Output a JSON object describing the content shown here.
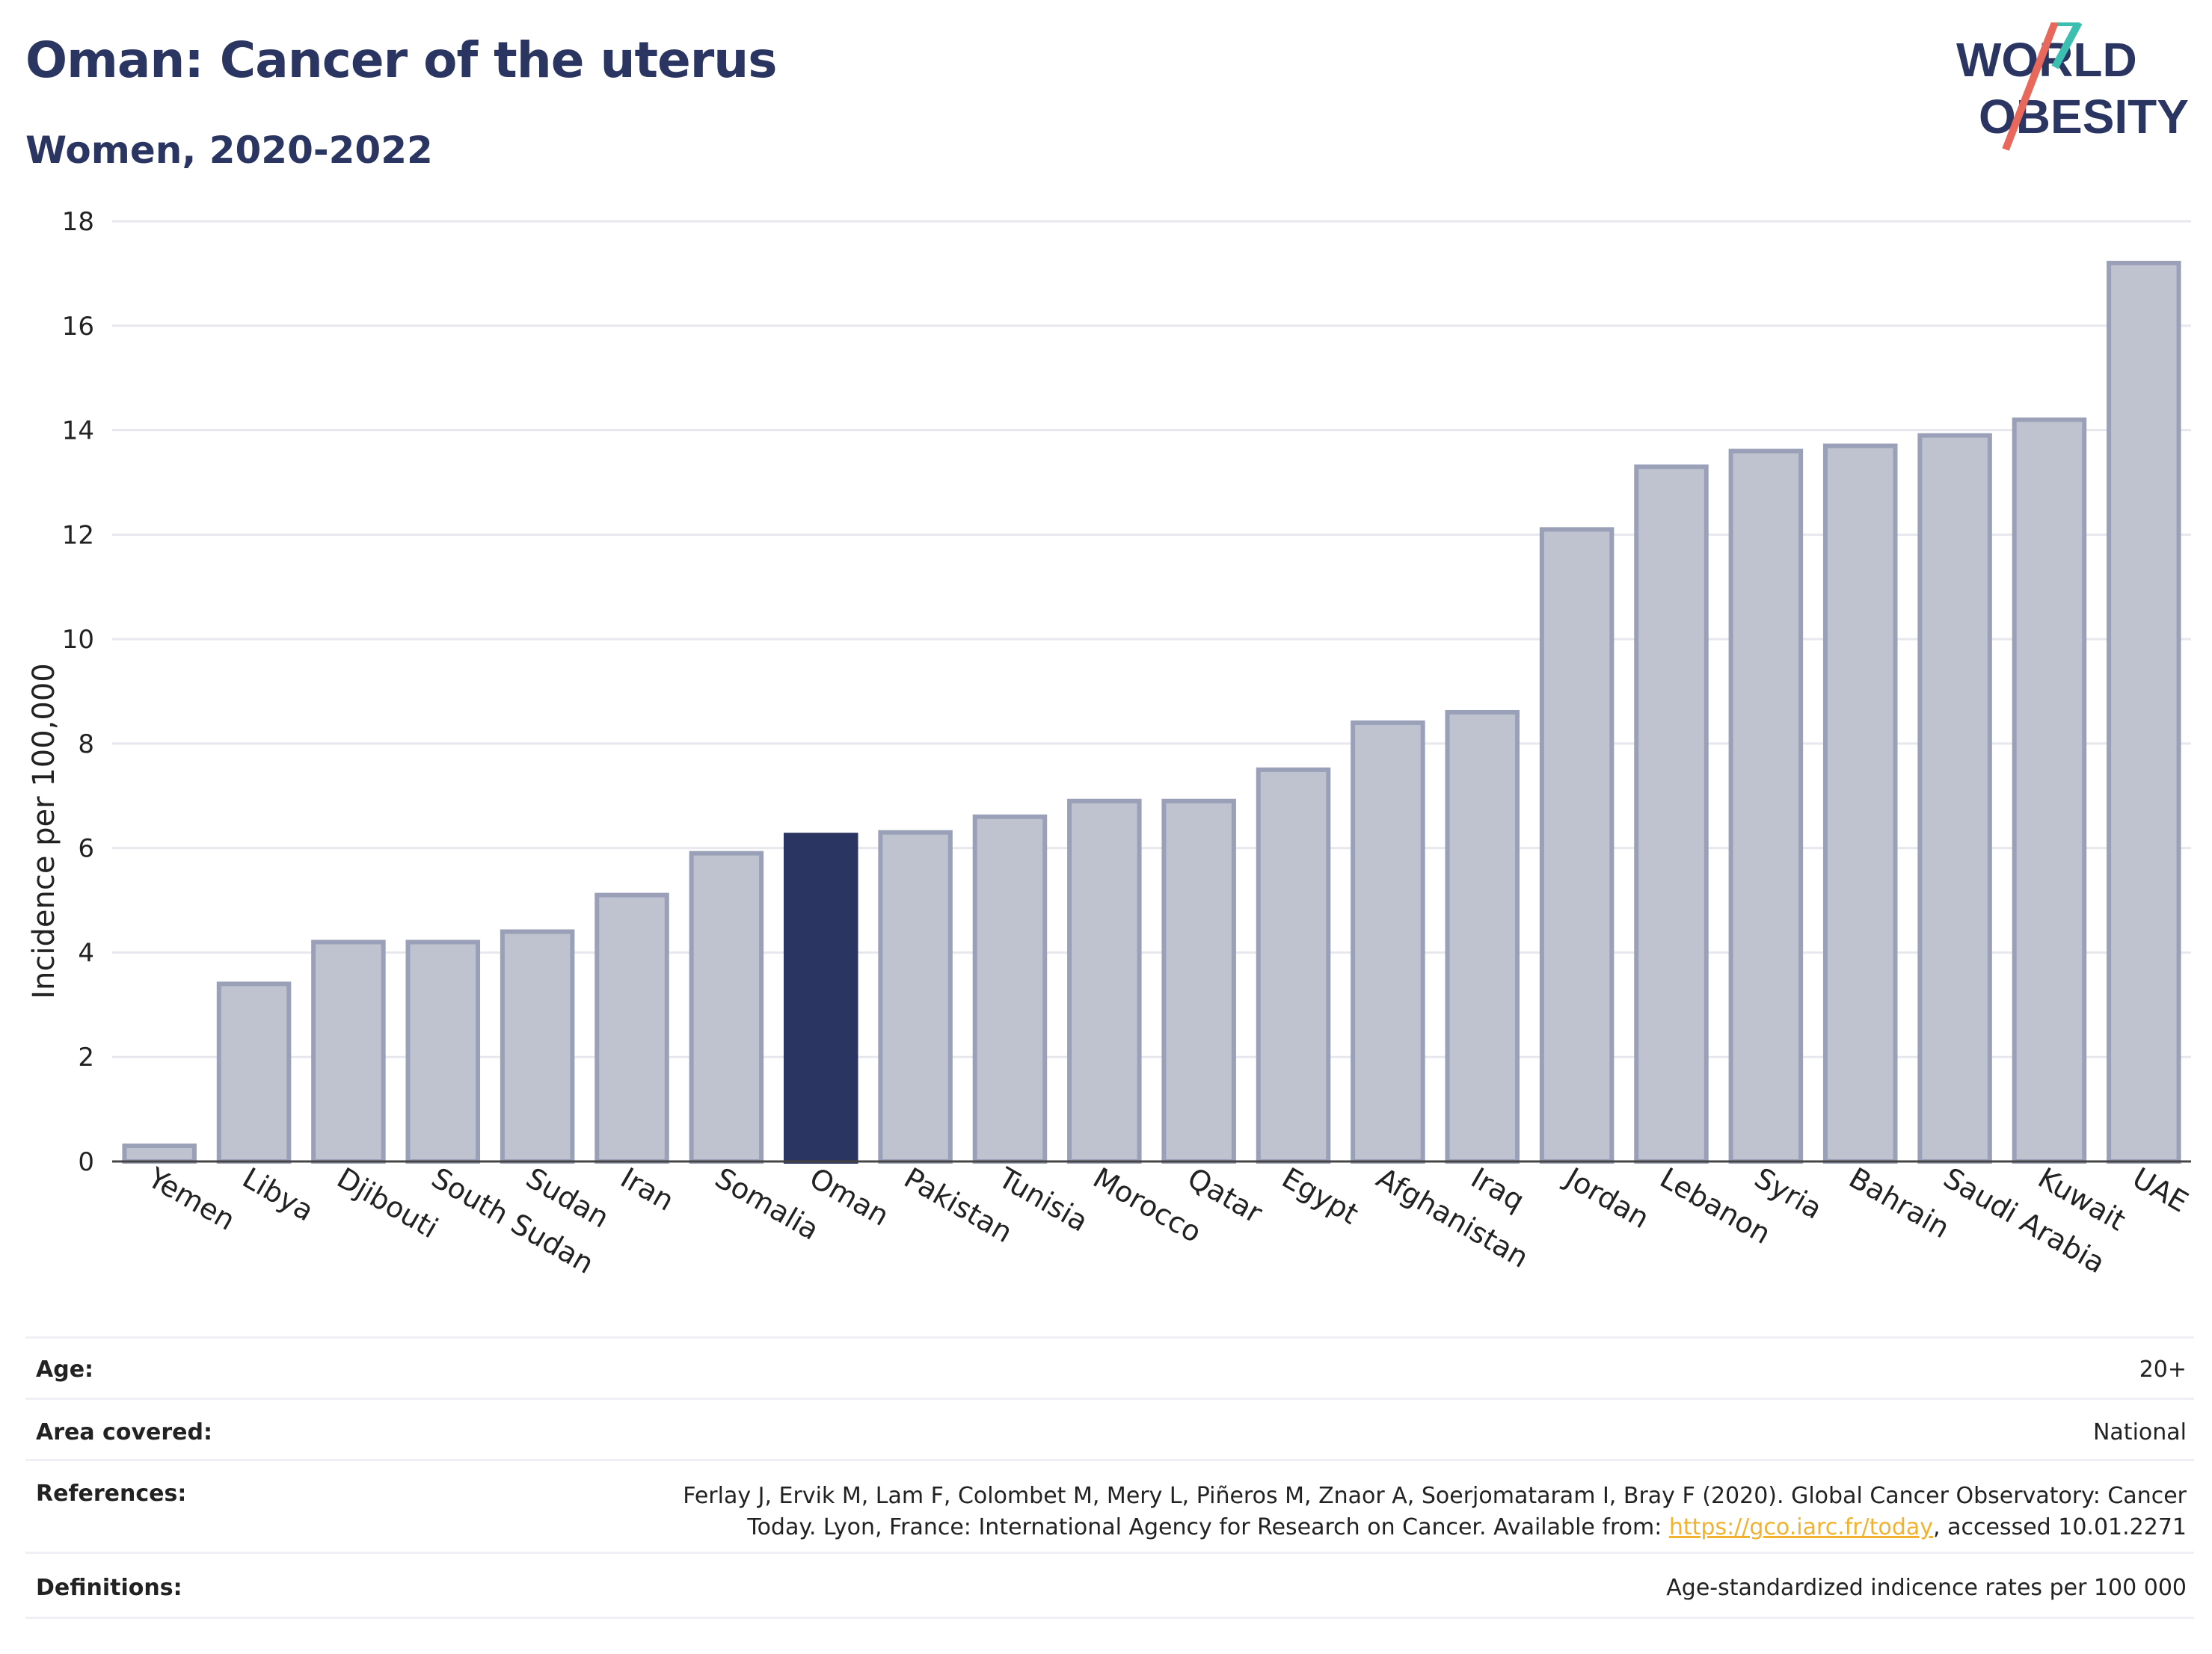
{
  "header": {
    "title": "Oman: Cancer of the uterus",
    "subtitle": "Women, 2020-2022"
  },
  "logo": {
    "line1": "WORLD",
    "line2": "OBESITY",
    "colors": {
      "text": "#2b3561",
      "slash_red": "#e8695c",
      "slash_teal": "#3bbfb0"
    }
  },
  "chart_data": {
    "type": "bar",
    "ylabel": "Incidence per 100,000",
    "xlabel": "",
    "ylim": [
      0,
      18
    ],
    "yticks": [
      0,
      2,
      4,
      6,
      8,
      10,
      12,
      14,
      16,
      18
    ],
    "grid": true,
    "highlight": "Oman",
    "colors": {
      "bar": "#bfc3d0",
      "bar_edge": "#9aa0b8",
      "highlight": "#2b3561"
    },
    "categories": [
      "Yemen",
      "Libya",
      "Djibouti",
      "South Sudan",
      "Sudan",
      "Iran",
      "Somalia",
      "Oman",
      "Pakistan",
      "Tunisia",
      "Morocco",
      "Qatar",
      "Egypt",
      "Afghanistan",
      "Iraq",
      "Jordan",
      "Lebanon",
      "Syria",
      "Bahrain",
      "Saudi Arabia",
      "Kuwait",
      "UAE"
    ],
    "values": [
      0.3,
      3.4,
      4.2,
      4.2,
      4.4,
      5.1,
      5.9,
      6.25,
      6.3,
      6.6,
      6.9,
      6.9,
      7.5,
      8.4,
      8.6,
      12.1,
      13.3,
      13.6,
      13.7,
      13.9,
      14.2,
      17.2
    ]
  },
  "meta": {
    "age_label": "Age:",
    "age_value": "20+",
    "area_label": "Area covered:",
    "area_value": "National",
    "references_label": "References:",
    "references_line1": "Ferlay J, Ervik M, Lam F, Colombet M, Mery L, Piñeros M, Znaor A, Soerjomataram I, Bray F (2020). Global Cancer Observatory: Cancer",
    "references_line2_pre": "Today. Lyon, France: International Agency for Research on Cancer. Available from: ",
    "references_link": "https://gco.iarc.fr/today",
    "references_line2_post": ", accessed 10.01.2271",
    "definitions_label": "Definitions:",
    "definitions_value": "Age-standardized indicence rates per 100 000"
  }
}
